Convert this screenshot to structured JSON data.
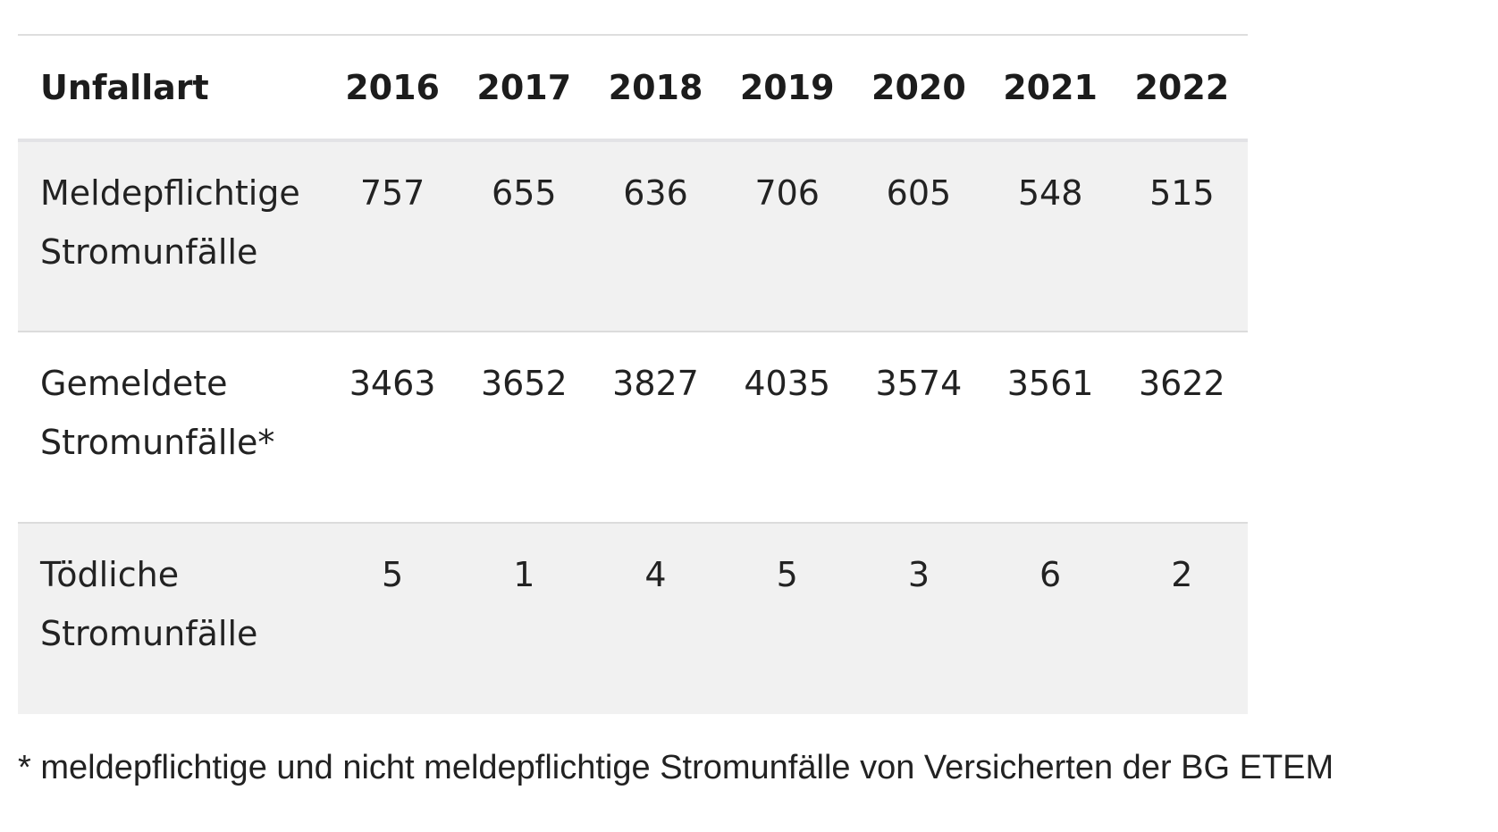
{
  "table": {
    "headers": [
      "Unfallart",
      "2016",
      "2017",
      "2018",
      "2019",
      "2020",
      "2021",
      "2022"
    ],
    "rows": [
      {
        "label_lines": [
          "Meldepflichtige",
          "Stromunfälle"
        ],
        "values": [
          "757",
          "655",
          "636",
          "706",
          "605",
          "548",
          "515"
        ]
      },
      {
        "label_lines": [
          "Gemeldete",
          "Stromunfälle*"
        ],
        "values": [
          "3463",
          "3652",
          "3827",
          "4035",
          "3574",
          "3561",
          "3622"
        ]
      },
      {
        "label_lines": [
          "Tödliche",
          "Stromunfälle"
        ],
        "values": [
          "5",
          "1",
          "4",
          "5",
          "3",
          "6",
          "2"
        ]
      }
    ]
  },
  "footnote": "* meldepflichtige und nicht meldepflichtige Stromunfälle von Versicherten der BG ETEM",
  "colors": {
    "row_shade": "#f1f1f1",
    "divider": "#dcdcdc",
    "text": "#222222"
  }
}
